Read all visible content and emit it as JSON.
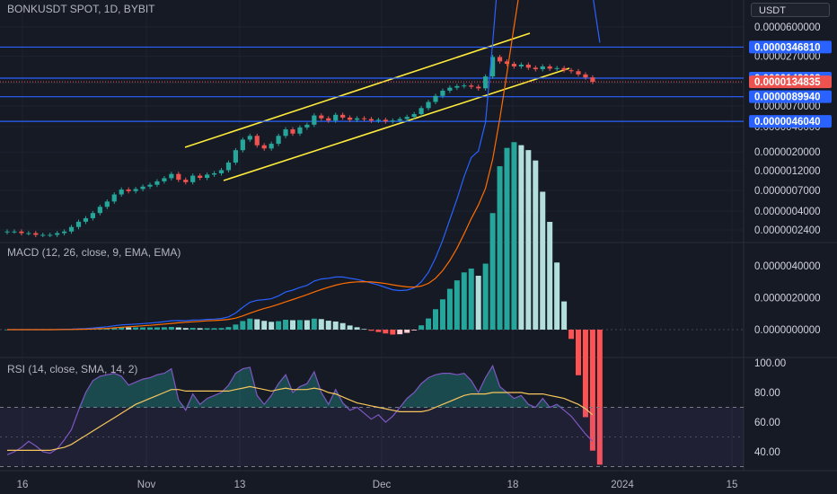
{
  "chart_title": "BONKUSDT SPOT, 1D, BYBIT",
  "currency_button": "USDT",
  "colors": {
    "background": "#161a25",
    "up": "#26a69a",
    "down": "#ef5350",
    "hline": "#2962ff",
    "channel": "#ffeb3b",
    "macd": "#2962ff",
    "signal": "#ff6d00",
    "rsi": "#7e57c2",
    "rsi_ma": "#f7c65c"
  },
  "x_axis": {
    "labels": [
      "16",
      "Nov",
      "13",
      "Dec",
      "18",
      "2024",
      "15"
    ]
  },
  "chart_data": [
    {
      "type": "candlestick",
      "title": "BONKUSDT SPOT, 1D, BYBIT",
      "y_scale": "log",
      "y_tick_labels": [
        "0.0000600000",
        "0.0000270000",
        "0.0000130000",
        "0.0000070000",
        "0.0000040000",
        "0.0000020000",
        "0.0000012000",
        "0.0000007000",
        "0.0000004000",
        "0.0000002400"
      ],
      "y_tick_values": [
        6e-05,
        2.7e-05,
        1.3e-05,
        7e-06,
        4e-06,
        2e-06,
        1.2e-06,
        7e-07,
        4e-07,
        2.4e-07
      ],
      "horizontal_levels": [
        {
          "value": 3.4681e-05,
          "label": "0.0000346810"
        },
        {
          "value": 1.49068e-05,
          "label": "0.0000149068"
        },
        {
          "value": 8.994e-06,
          "label": "0.0000089940"
        },
        {
          "value": 4.604e-06,
          "label": "0.0000046040"
        }
      ],
      "last_price": {
        "value": 1.34835e-05,
        "label": "0.0000134835"
      },
      "candles_close": [
        2.3e-07,
        2.3e-07,
        2.2e-07,
        2.2e-07,
        2.1e-07,
        2.1e-07,
        2.1e-07,
        2.2e-07,
        2.3e-07,
        2.6e-07,
        3e-07,
        3.3e-07,
        3.8e-07,
        4.5e-07,
        5.2e-07,
        6.3e-07,
        7.2e-07,
        6.9e-07,
        7.3e-07,
        7.8e-07,
        8.2e-07,
        9e-07,
        9.8e-07,
        1.1e-06,
        9.4e-07,
        8.8e-07,
        1.05e-06,
        9.9e-07,
        1.08e-06,
        1.12e-06,
        1.22e-06,
        1.5e-06,
        2.1e-06,
        2.8e-06,
        3.1e-06,
        2.4e-06,
        2.2e-06,
        2.5e-06,
        3.1e-06,
        3.7e-06,
        3.3e-06,
        3.9e-06,
        4.2e-06,
        5.4e-06,
        5e-06,
        4.7e-06,
        5.5e-06,
        5.1e-06,
        4.8e-06,
        5e-06,
        4.9e-06,
        4.7e-06,
        4.8e-06,
        4.6e-06,
        4.7e-06,
        4.9e-06,
        5.2e-06,
        5.6e-06,
        6.6e-06,
        7.8e-06,
        9.2e-06,
        1.06e-05,
        1.15e-05,
        1.2e-05,
        1.22e-05,
        1.18e-05,
        1.13e-05,
        1.56e-05,
        2.65e-05,
        2.35e-05,
        2.2e-05,
        2.05e-05,
        2.15e-05,
        1.98e-05,
        1.9e-05,
        2.05e-05,
        1.93e-05,
        1.96e-05,
        1.85e-05,
        1.8e-05,
        1.65e-05,
        1.52e-05,
        1.348e-05
      ],
      "macd": [
        0.0,
        0.0,
        0.0,
        0.0,
        0.0,
        0.0,
        0.0,
        1e-08,
        2e-08,
        3e-08,
        5e-08,
        7e-08,
        1e-07,
        1.4e-07,
        1.8e-07,
        2.4e-07,
        3e-07,
        3.2e-07,
        3.5e-07,
        3.8e-07,
        4.1e-07,
        4.5e-07,
        5e-07,
        5.6e-07,
        5.7e-07,
        5.6e-07,
        6e-07,
        6.1e-07,
        6.4e-07,
        6.6e-07,
        7e-07,
        8e-07,
        1.04e-06,
        1.4e-06,
        1.72e-06,
        1.84e-06,
        1.88e-06,
        1.94e-06,
        2.12e-06,
        2.36e-06,
        2.48e-06,
        2.64e-06,
        2.78e-06,
        3.05e-06,
        3.18e-06,
        3.22e-06,
        3.3e-06,
        3.3e-06,
        3.22e-06,
        3.15e-06,
        3.05e-06,
        2.92e-06,
        2.8e-06,
        2.65e-06,
        2.5e-06,
        2.45e-06,
        2.48e-06,
        2.62e-06,
        3e-06,
        3.6e-06,
        4.5e-06,
        5.6e-06,
        6.9e-06,
        8.2e-06,
        9.6e-06,
        1.08e-05,
        1.12e-05,
        1.3e-05,
        1.8e-05,
        2.35e-05,
        2.75e-05,
        3.08e-05,
        3.35e-05,
        3.6e-05,
        3.8e-05,
        3.82e-05,
        3.8e-05,
        3.65e-05,
        3.45e-05,
        3.2e-05,
        2.9e-05,
        2.5e-05,
        2.1e-05,
        1.8e-05
      ],
      "macd_signal": [
        0.0,
        0.0,
        0.0,
        0.0,
        0.0,
        0.0,
        0.0,
        0.0,
        1e-08,
        1e-08,
        2e-08,
        3e-08,
        4e-08,
        6e-08,
        8e-08,
        1.1e-07,
        1.5e-07,
        1.8e-07,
        2.1e-07,
        2.4e-07,
        2.7e-07,
        3.1e-07,
        3.5e-07,
        3.9e-07,
        4.3e-07,
        4.6e-07,
        4.9e-07,
        5.2e-07,
        5.5e-07,
        5.7e-07,
        6e-07,
        6.4e-07,
        7.2e-07,
        8.6e-07,
        1.03e-06,
        1.19e-06,
        1.33e-06,
        1.45e-06,
        1.59e-06,
        1.74e-06,
        1.89e-06,
        2.04e-06,
        2.19e-06,
        2.36e-06,
        2.52e-06,
        2.66e-06,
        2.79e-06,
        2.89e-06,
        2.96e-06,
        3e-06,
        3.01e-06,
        2.99e-06,
        2.95e-06,
        2.89e-06,
        2.81e-06,
        2.74e-06,
        2.68e-06,
        2.67e-06,
        2.73e-06,
        2.9e-06,
        3.22e-06,
        3.7e-06,
        4.34e-06,
        5.11e-06,
        6.01e-06,
        6.97e-06,
        7.82e-06,
        8.86e-06,
        1.069e-05,
        1.325e-05,
        1.61e-05,
        1.904e-05,
        2.193e-05,
        2.474e-05,
        2.739e-05,
        2.955e-05,
        3.124e-05,
        3.229e-05,
        3.273e-05,
        3.258e-05,
        3.186e-05,
        3.049e-05,
        2.859e-05,
        2.647e-05
      ],
      "macd_histogram": [
        0.0,
        0.0,
        0.0,
        0.0,
        0.0,
        0.0,
        0.0,
        1e-08,
        1e-08,
        2e-08,
        3e-08,
        4e-08,
        6e-08,
        8e-08,
        1e-07,
        1.3e-07,
        1.5e-07,
        1.4e-07,
        1.4e-07,
        1.4e-07,
        1.4e-07,
        1.4e-07,
        1.5e-07,
        1.7e-07,
        1.4e-07,
        1e-07,
        1.1e-07,
        9e-08,
        9e-08,
        9e-08,
        1e-07,
        1.6e-07,
        3.2e-07,
        5.4e-07,
        6.9e-07,
        6.5e-07,
        5.5e-07,
        4.9e-07,
        5.3e-07,
        6.2e-07,
        5.9e-07,
        6e-07,
        5.9e-07,
        6.9e-07,
        6.6e-07,
        5.6e-07,
        5.1e-07,
        4.1e-07,
        2.6e-07,
        1.5e-07,
        4e-08,
        -7e-08,
        -1.5e-07,
        -2.4e-07,
        -3.1e-07,
        -2.9e-07,
        -2e-07,
        -5e-08,
        2.7e-07,
        7e-07,
        1.28e-06,
        1.9e-06,
        2.56e-06,
        3.09e-06,
        3.59e-06,
        3.83e-06,
        3.38e-06,
        4.14e-06,
        7.31e-06,
        1.025e-05,
        1.14e-05,
        1.176e-05,
        1.157e-05,
        1.126e-05,
        1.061e-05,
        8.65e-06,
        6.76e-06,
        4.21e-06,
        1.77e-06,
        -5.8e-07,
        -2.86e-06,
        -5.49e-06,
        -7.59e-06,
        -8.47e-06
      ],
      "rsi": [
        38,
        40,
        43,
        47,
        44,
        40,
        39,
        42,
        48,
        55,
        68,
        80,
        88,
        91,
        92,
        93,
        91,
        85,
        87,
        89,
        90,
        92,
        93,
        96,
        75,
        68,
        79,
        72,
        76,
        78,
        80,
        85,
        93,
        96,
        97,
        78,
        72,
        78,
        86,
        92,
        80,
        84,
        86,
        94,
        80,
        72,
        82,
        73,
        68,
        70,
        66,
        62,
        65,
        60,
        64,
        70,
        76,
        80,
        86,
        90,
        92,
        93,
        93,
        92,
        93,
        88,
        80,
        90,
        98,
        84,
        80,
        76,
        78,
        72,
        70,
        76,
        70,
        72,
        68,
        64,
        58,
        52,
        47
      ],
      "rsi_ma": [
        41,
        41,
        41,
        41,
        41,
        41,
        41,
        42,
        43,
        45,
        48,
        51,
        54,
        57,
        60,
        63,
        66,
        69,
        72,
        74,
        76,
        78,
        80,
        82,
        82,
        81,
        81,
        81,
        81,
        81,
        81,
        81,
        82,
        83,
        84,
        83,
        82,
        81,
        82,
        83,
        82,
        82,
        82,
        83,
        82,
        80,
        79,
        77,
        75,
        73,
        72,
        71,
        70,
        69,
        68,
        67,
        67,
        67,
        67,
        68,
        70,
        72,
        74,
        76,
        78,
        79,
        79,
        79,
        80,
        80,
        80,
        80,
        80,
        79,
        79,
        79,
        78,
        77,
        76,
        74,
        72,
        69,
        65
      ],
      "panes": {
        "macd": {
          "title": "MACD (12, 26, close, 9, EMA, EMA)",
          "y_tick_labels": [
            "0.0000040000",
            "0.0000020000",
            "0.0000000000"
          ],
          "y_tick_values": [
            4e-06,
            2e-06,
            0.0
          ]
        },
        "rsi": {
          "title": "RSI (14, close, SMA, 14, 2)",
          "y_tick_labels": [
            "100.00",
            "80.00",
            "60.00",
            "40.00"
          ],
          "y_tick_values": [
            100,
            80,
            60,
            40
          ],
          "band_upper": 70,
          "band_lower": 30
        }
      }
    }
  ]
}
